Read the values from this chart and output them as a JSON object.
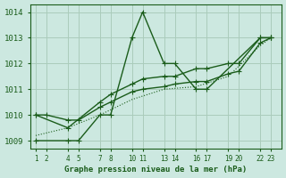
{
  "bg_color": "#cce8e0",
  "grid_color": "#aaccbb",
  "line_color": "#1a5c1a",
  "title": "Graphe pression niveau de la mer (hPa)",
  "ylabel_values": [
    1009,
    1010,
    1011,
    1012,
    1013,
    1014
  ],
  "xtick_labels": [
    "1",
    "2",
    "4",
    "5",
    "7",
    "8",
    "10",
    "11",
    "13",
    "14",
    "16",
    "17",
    "19",
    "20",
    "22",
    "23"
  ],
  "xtick_positions": [
    1,
    2,
    4,
    5,
    7,
    8,
    10,
    11,
    13,
    14,
    16,
    17,
    19,
    20,
    22,
    23
  ],
  "xlim": [
    0.5,
    24.0
  ],
  "ylim": [
    1008.7,
    1014.3
  ],
  "line1_x": [
    1,
    4,
    5,
    7,
    8,
    10,
    11,
    13,
    14,
    16,
    17,
    22,
    23
  ],
  "line1_y": [
    1009,
    1009,
    1009,
    1010,
    1010,
    1013,
    1014,
    1012,
    1012,
    1011,
    1011,
    1013,
    1013
  ],
  "line2_x": [
    1,
    4,
    7,
    8,
    10,
    11,
    13,
    14,
    16,
    17,
    19,
    20,
    22,
    23
  ],
  "line2_y": [
    1010,
    1009.5,
    1010.5,
    1010.8,
    1011.2,
    1011.4,
    1011.5,
    1011.5,
    1011.8,
    1011.8,
    1012.0,
    1012.0,
    1013.0,
    1013.0
  ],
  "line3_x": [
    1,
    2,
    4,
    5,
    7,
    8,
    10,
    11,
    13,
    14,
    16,
    17,
    19,
    20,
    22,
    23
  ],
  "line3_y": [
    1010,
    1010,
    1009.8,
    1009.8,
    1010.3,
    1010.5,
    1010.9,
    1011.0,
    1011.1,
    1011.2,
    1011.3,
    1011.3,
    1011.6,
    1011.7,
    1012.8,
    1013.0
  ],
  "line4_x": [
    1,
    4,
    7,
    10,
    13,
    16,
    19,
    22,
    23
  ],
  "line4_y": [
    1009.2,
    1009.5,
    1010.0,
    1010.6,
    1011.0,
    1011.1,
    1011.5,
    1012.7,
    1013.0
  ]
}
